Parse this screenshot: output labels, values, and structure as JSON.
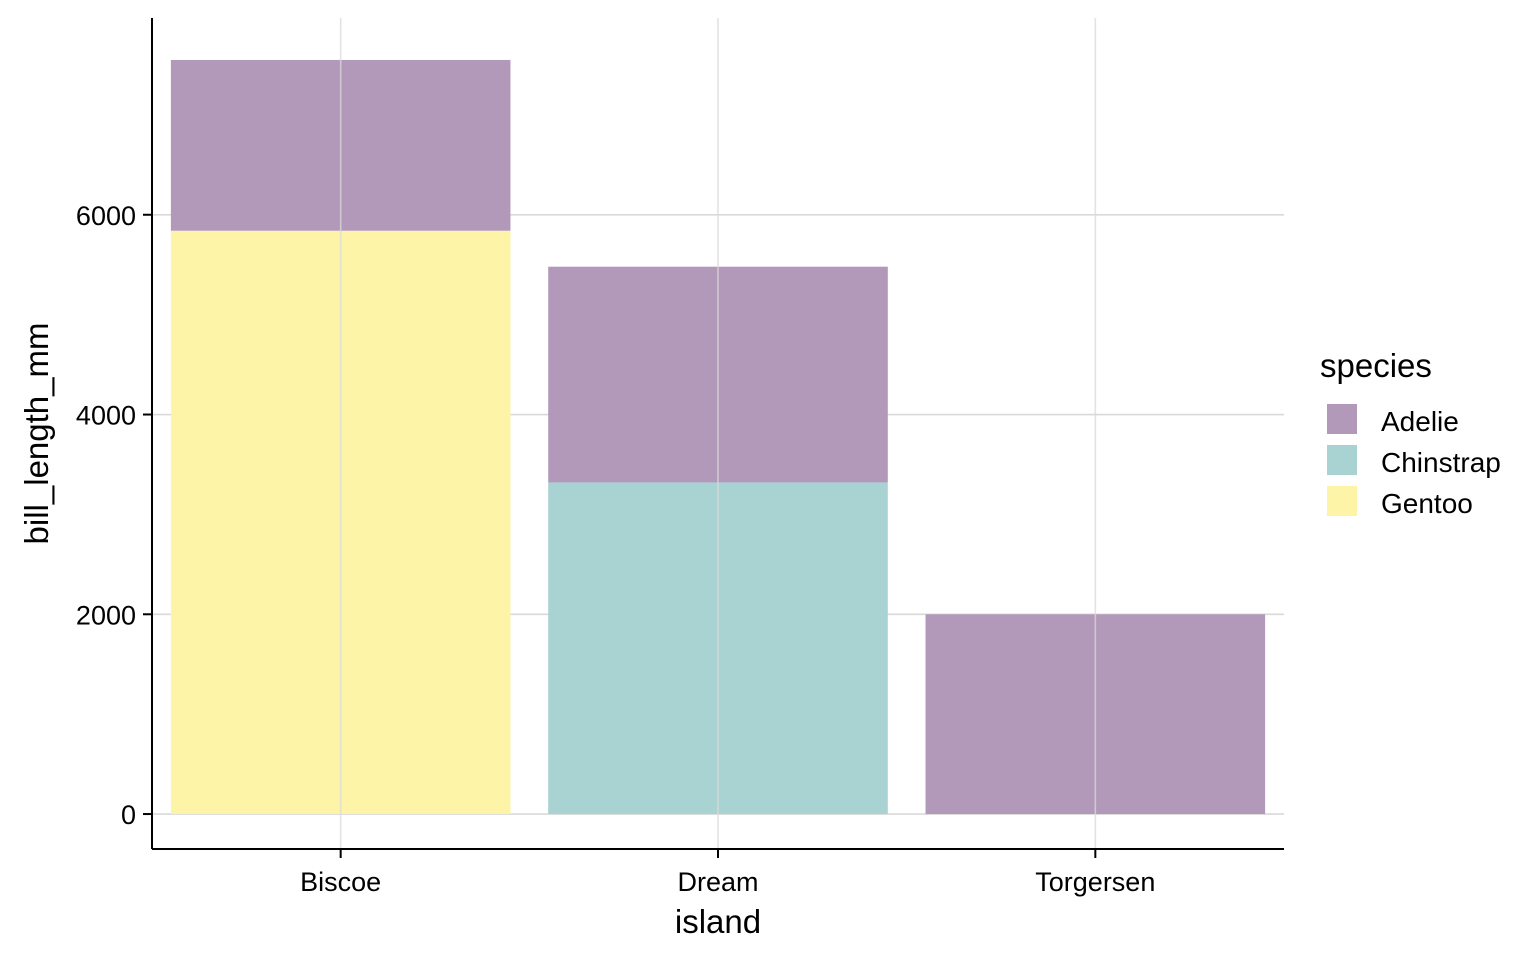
{
  "chart_data": {
    "type": "bar",
    "stacked": true,
    "xlabel": "island",
    "ylabel": "bill_length_mm",
    "categories": [
      "Biscoe",
      "Dream",
      "Torgersen"
    ],
    "series": [
      {
        "name": "Adelie",
        "color": "#b399b9",
        "values": [
          1710,
          2160,
          2000
        ]
      },
      {
        "name": "Chinstrap",
        "color": "#a8d3d2",
        "values": [
          0,
          3320,
          0
        ]
      },
      {
        "name": "Gentoo",
        "color": "#fdf4a8",
        "values": [
          5840,
          0,
          0
        ]
      }
    ],
    "stack_order_bottom_to_top": [
      "Gentoo",
      "Chinstrap",
      "Adelie"
    ],
    "yticks": [
      0,
      2000,
      4000,
      6000
    ],
    "ylim": [
      -350,
      7970
    ],
    "grid": true,
    "legend": {
      "title": "species",
      "position": "right"
    }
  }
}
